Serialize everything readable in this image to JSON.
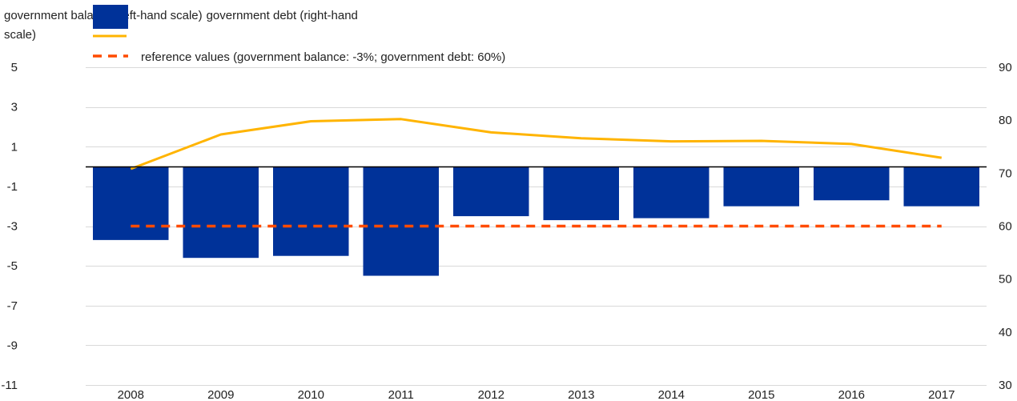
{
  "chart_data": {
    "type": "bar",
    "categories": [
      "2008",
      "2009",
      "2010",
      "2011",
      "2012",
      "2013",
      "2014",
      "2015",
      "2016",
      "2017"
    ],
    "series": [
      {
        "name": "government balance (left-hand scale)",
        "type": "bar",
        "axis": "left",
        "values": [
          -3.7,
          -4.6,
          -4.5,
          -5.5,
          -2.5,
          -2.7,
          -2.6,
          -2.0,
          -1.7,
          -2.0
        ]
      },
      {
        "name": "government debt (right-hand scale)",
        "type": "line",
        "axis": "right",
        "values": [
          70.8,
          77.3,
          79.8,
          80.2,
          77.7,
          76.6,
          76.0,
          76.1,
          75.5,
          72.9
        ]
      },
      {
        "name": "reference values (government balance: -3%; government debt: 60%)",
        "type": "dashed-line",
        "axis": "left",
        "values": [
          -3,
          -3,
          -3,
          -3,
          -3,
          -3,
          -3,
          -3,
          -3,
          -3
        ]
      }
    ],
    "left_axis": {
      "ylim": [
        -11,
        5
      ],
      "ticks": [
        "5",
        "3",
        "1",
        "-1",
        "-3",
        "-5",
        "-7",
        "-9",
        "-11"
      ]
    },
    "right_axis": {
      "ylim": [
        30,
        90
      ],
      "ticks": [
        "90",
        "80",
        "70",
        "60",
        "50",
        "40",
        "30"
      ]
    },
    "grid": true,
    "legend_position": "top-left",
    "colors": {
      "bar": "#003299",
      "debt_line": "#FFB400",
      "reference_line": "#FF4B00",
      "grid": "#d9d9d9",
      "axis": "#000000"
    }
  }
}
